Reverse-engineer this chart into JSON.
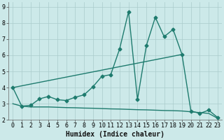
{
  "xlabel": "Humidex (Indice chaleur)",
  "background_color": "#cce9e9",
  "grid_color": "#aacccc",
  "line_color": "#1e7b6e",
  "xlim": [
    -0.5,
    23.5
  ],
  "ylim": [
    2.0,
    9.3
  ],
  "xticks": [
    0,
    1,
    2,
    3,
    4,
    5,
    6,
    7,
    8,
    9,
    10,
    11,
    12,
    13,
    14,
    15,
    16,
    17,
    18,
    19,
    20,
    21,
    22,
    23
  ],
  "yticks": [
    2,
    3,
    4,
    5,
    6,
    7,
    8,
    9
  ],
  "line1_x": [
    0,
    1,
    2,
    3,
    4,
    5,
    6,
    7,
    8,
    9,
    10,
    11,
    12,
    13,
    14,
    15,
    16,
    17,
    18,
    19,
    20,
    21,
    22,
    23
  ],
  "line1_y": [
    4.0,
    2.85,
    2.9,
    3.3,
    3.45,
    3.25,
    3.2,
    3.4,
    3.55,
    4.05,
    4.7,
    4.8,
    6.4,
    8.7,
    3.25,
    6.6,
    8.35,
    7.15,
    7.6,
    6.05,
    2.55,
    2.4,
    2.6,
    2.15
  ],
  "line2_x": [
    0,
    1,
    2,
    3,
    4,
    5,
    6,
    7,
    8,
    9,
    10,
    11,
    12,
    13,
    14,
    15,
    16,
    17,
    18,
    19,
    20,
    21,
    22,
    23
  ],
  "line2_y": [
    3.0,
    2.85,
    2.8,
    2.8,
    2.8,
    2.78,
    2.76,
    2.75,
    2.73,
    2.72,
    2.7,
    2.68,
    2.67,
    2.65,
    2.63,
    2.62,
    2.6,
    2.58,
    2.57,
    2.55,
    2.5,
    2.45,
    2.4,
    2.1
  ],
  "line3_x": [
    0,
    19
  ],
  "line3_y": [
    4.0,
    6.05
  ],
  "marker": "D",
  "marker_size": 2.5,
  "linewidth": 1.0,
  "xlabel_fontsize": 7,
  "tick_fontsize": 6
}
